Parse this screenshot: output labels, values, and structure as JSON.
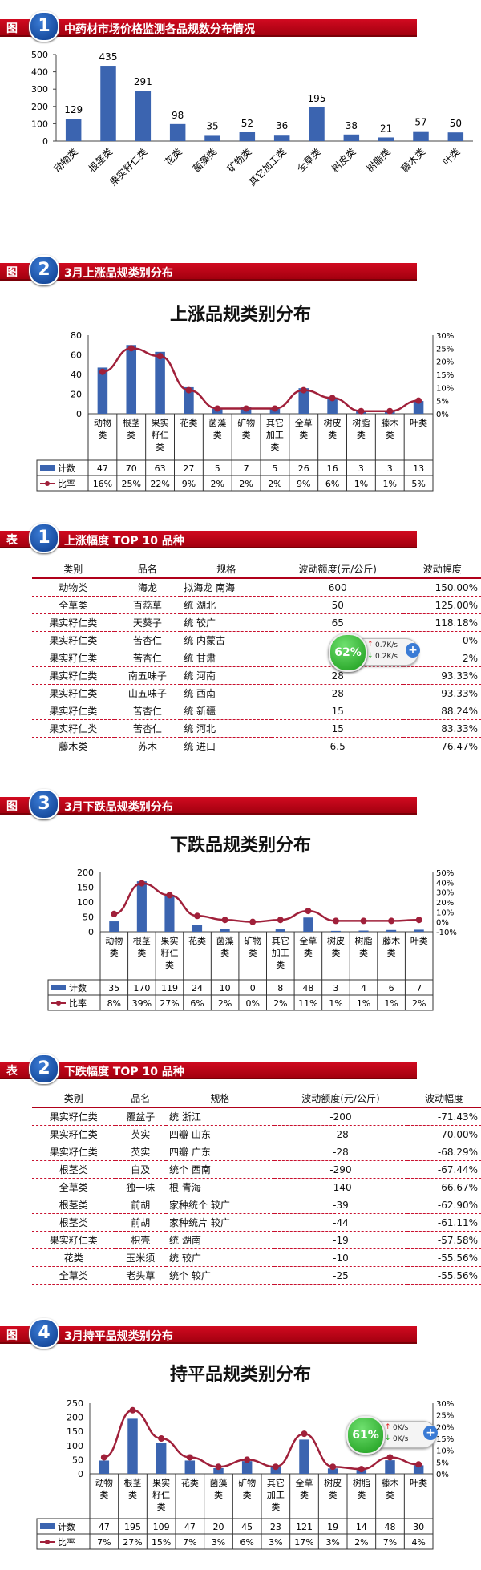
{
  "sections": [
    {
      "tag": "图",
      "num": "1",
      "title": "中药材市场价格监测各品规数分布情况"
    },
    {
      "tag": "图",
      "num": "2",
      "title": "3月上涨品规类别分布"
    },
    {
      "tag": "表",
      "num": "1",
      "title": "上涨幅度 TOP  10 品种"
    },
    {
      "tag": "图",
      "num": "3",
      "title": "3月下跌品规类别分布"
    },
    {
      "tag": "表",
      "num": "2",
      "title": "下跌幅度 TOP  10 品种"
    },
    {
      "tag": "图",
      "num": "4",
      "title": "3月持平品规类别分布"
    }
  ],
  "colors": {
    "bar": "#3b64b0",
    "line": "#a0203a",
    "header": "#b0001a"
  },
  "chart_data": [
    {
      "type": "bar",
      "title": "",
      "categories": [
        "动物类",
        "根茎类",
        "果实籽仁类",
        "花类",
        "菌藻类",
        "矿物类",
        "其它加工类",
        "全草类",
        "树皮类",
        "树脂类",
        "藤木类",
        "叶类"
      ],
      "values": [
        129,
        435,
        291,
        98,
        35,
        52,
        36,
        195,
        38,
        21,
        57,
        50
      ],
      "ylim": [
        0,
        500
      ],
      "yticks": [
        0,
        100,
        200,
        300,
        400,
        500
      ]
    },
    {
      "type": "bar+line",
      "title": "上涨品规类别分布",
      "categories": [
        "动物类",
        "根茎类",
        "果实籽仁类",
        "花类",
        "菌藻类",
        "矿物类",
        "其它加工类",
        "全草类",
        "树皮类",
        "树脂类",
        "藤木类",
        "叶类"
      ],
      "series": [
        {
          "name": "计数",
          "values": [
            47,
            70,
            63,
            27,
            5,
            7,
            5,
            26,
            16,
            3,
            3,
            13
          ]
        },
        {
          "name": "比率",
          "values": [
            "16%",
            "25%",
            "22%",
            "9%",
            "2%",
            "2%",
            "2%",
            "9%",
            "6%",
            "1%",
            "1%",
            "5%"
          ],
          "numeric": [
            16,
            25,
            22,
            9,
            2,
            2,
            2,
            9,
            6,
            1,
            1,
            5
          ]
        }
      ],
      "ylim": [
        0,
        80
      ],
      "yticks": [
        0,
        20,
        40,
        60,
        80
      ],
      "y2lim": [
        0,
        30
      ],
      "y2ticks": [
        "0%",
        "5%",
        "10%",
        "15%",
        "20%",
        "25%",
        "30%"
      ]
    },
    {
      "type": "bar+line",
      "title": "下跌品规类别分布",
      "categories": [
        "动物类",
        "根茎类",
        "果实籽仁类",
        "花类",
        "菌藻类",
        "矿物类",
        "其它加工类",
        "全草类",
        "树皮类",
        "树脂类",
        "藤木类",
        "叶类"
      ],
      "series": [
        {
          "name": "计数",
          "values": [
            35,
            170,
            119,
            24,
            10,
            0,
            8,
            48,
            3,
            4,
            6,
            7
          ]
        },
        {
          "name": "比率",
          "values": [
            "8%",
            "39%",
            "27%",
            "6%",
            "2%",
            "0%",
            "2%",
            "11%",
            "1%",
            "1%",
            "1%",
            "2%"
          ],
          "numeric": [
            8,
            39,
            27,
            6,
            2,
            0,
            2,
            11,
            1,
            1,
            1,
            2
          ]
        }
      ],
      "ylim": [
        0,
        200
      ],
      "yticks": [
        0,
        50,
        100,
        150,
        200
      ],
      "y2lim": [
        -10,
        50
      ],
      "y2ticks": [
        "-10%",
        "0%",
        "10%",
        "20%",
        "30%",
        "40%",
        "50%"
      ]
    },
    {
      "type": "bar+line",
      "title": "持平品规类别分布",
      "categories": [
        "动物类",
        "根茎类",
        "果实籽仁类",
        "花类",
        "菌藻类",
        "矿物类",
        "其它加工类",
        "全草类",
        "树皮类",
        "树脂类",
        "藤木类",
        "叶类"
      ],
      "series": [
        {
          "name": "计数",
          "values": [
            47,
            195,
            109,
            47,
            20,
            45,
            23,
            121,
            19,
            14,
            48,
            30
          ]
        },
        {
          "name": "比率",
          "values": [
            "7%",
            "27%",
            "15%",
            "7%",
            "3%",
            "6%",
            "3%",
            "17%",
            "3%",
            "2%",
            "7%",
            "4%"
          ],
          "numeric": [
            7,
            27,
            15,
            7,
            3,
            6,
            3,
            17,
            3,
            2,
            7,
            4
          ]
        }
      ],
      "ylim": [
        0,
        250
      ],
      "yticks": [
        0,
        50,
        100,
        150,
        200,
        250
      ],
      "y2lim": [
        0,
        30
      ],
      "y2ticks": [
        "0%",
        "5%",
        "10%",
        "15%",
        "20%",
        "25%",
        "30%"
      ]
    }
  ],
  "table_up": {
    "headers": [
      "类别",
      "品名",
      "规格",
      "波动额度(元/公斤)",
      "波动幅度"
    ],
    "rows": [
      [
        "动物类",
        "海龙",
        "拟海龙 南海",
        "600",
        "150.00%"
      ],
      [
        "全草类",
        "百蕊草",
        "统 湖北",
        "50",
        "125.00%"
      ],
      [
        "果实籽仁类",
        "天葵子",
        "统 较广",
        "65",
        "118.18%"
      ],
      [
        "果实籽仁类",
        "苦杏仁",
        "统 内蒙古",
        "1",
        "0%"
      ],
      [
        "果实籽仁类",
        "苦杏仁",
        "统 甘肃",
        "1",
        "2%"
      ],
      [
        "果实籽仁类",
        "南五味子",
        "统 河南",
        "28",
        "93.33%"
      ],
      [
        "果实籽仁类",
        "山五味子",
        "统 西南",
        "28",
        "93.33%"
      ],
      [
        "果实籽仁类",
        "苦杏仁",
        "统 新疆",
        "15",
        "88.24%"
      ],
      [
        "果实籽仁类",
        "苦杏仁",
        "统 河北",
        "15",
        "83.33%"
      ],
      [
        "藤木类",
        "苏木",
        "统 进口",
        "6.5",
        "76.47%"
      ]
    ]
  },
  "table_down": {
    "headers": [
      "类别",
      "品名",
      "规格",
      "波动额度(元/公斤)",
      "波动幅度"
    ],
    "rows": [
      [
        "果实籽仁类",
        "覆盆子",
        "统 浙江",
        "-200",
        "-71.43%"
      ],
      [
        "果实籽仁类",
        "芡实",
        "四瓣 山东",
        "-28",
        "-70.00%"
      ],
      [
        "果实籽仁类",
        "芡实",
        "四瓣 广东",
        "-28",
        "-68.29%"
      ],
      [
        "根茎类",
        "白及",
        "统个 西南",
        "-290",
        "-67.44%"
      ],
      [
        "全草类",
        "独一味",
        "根 青海",
        "-140",
        "-66.67%"
      ],
      [
        "根茎类",
        "前胡",
        "家种统个 较广",
        "-39",
        "-62.90%"
      ],
      [
        "根茎类",
        "前胡",
        "家种统片 较广",
        "-44",
        "-61.11%"
      ],
      [
        "果实籽仁类",
        "枳壳",
        "统 湖南",
        "-19",
        "-57.58%"
      ],
      [
        "花类",
        "玉米须",
        "统 较广",
        "-10",
        "-55.56%"
      ],
      [
        "全草类",
        "老头草",
        "统个 较广",
        "-25",
        "-55.56%"
      ]
    ]
  },
  "widgets": [
    {
      "percent": "62%",
      "up": "0.7K/s",
      "down": "0.2K/s",
      "plus": "+"
    },
    {
      "percent": "61%",
      "up": "0K/s",
      "down": "0K/s",
      "plus": "+"
    }
  ]
}
